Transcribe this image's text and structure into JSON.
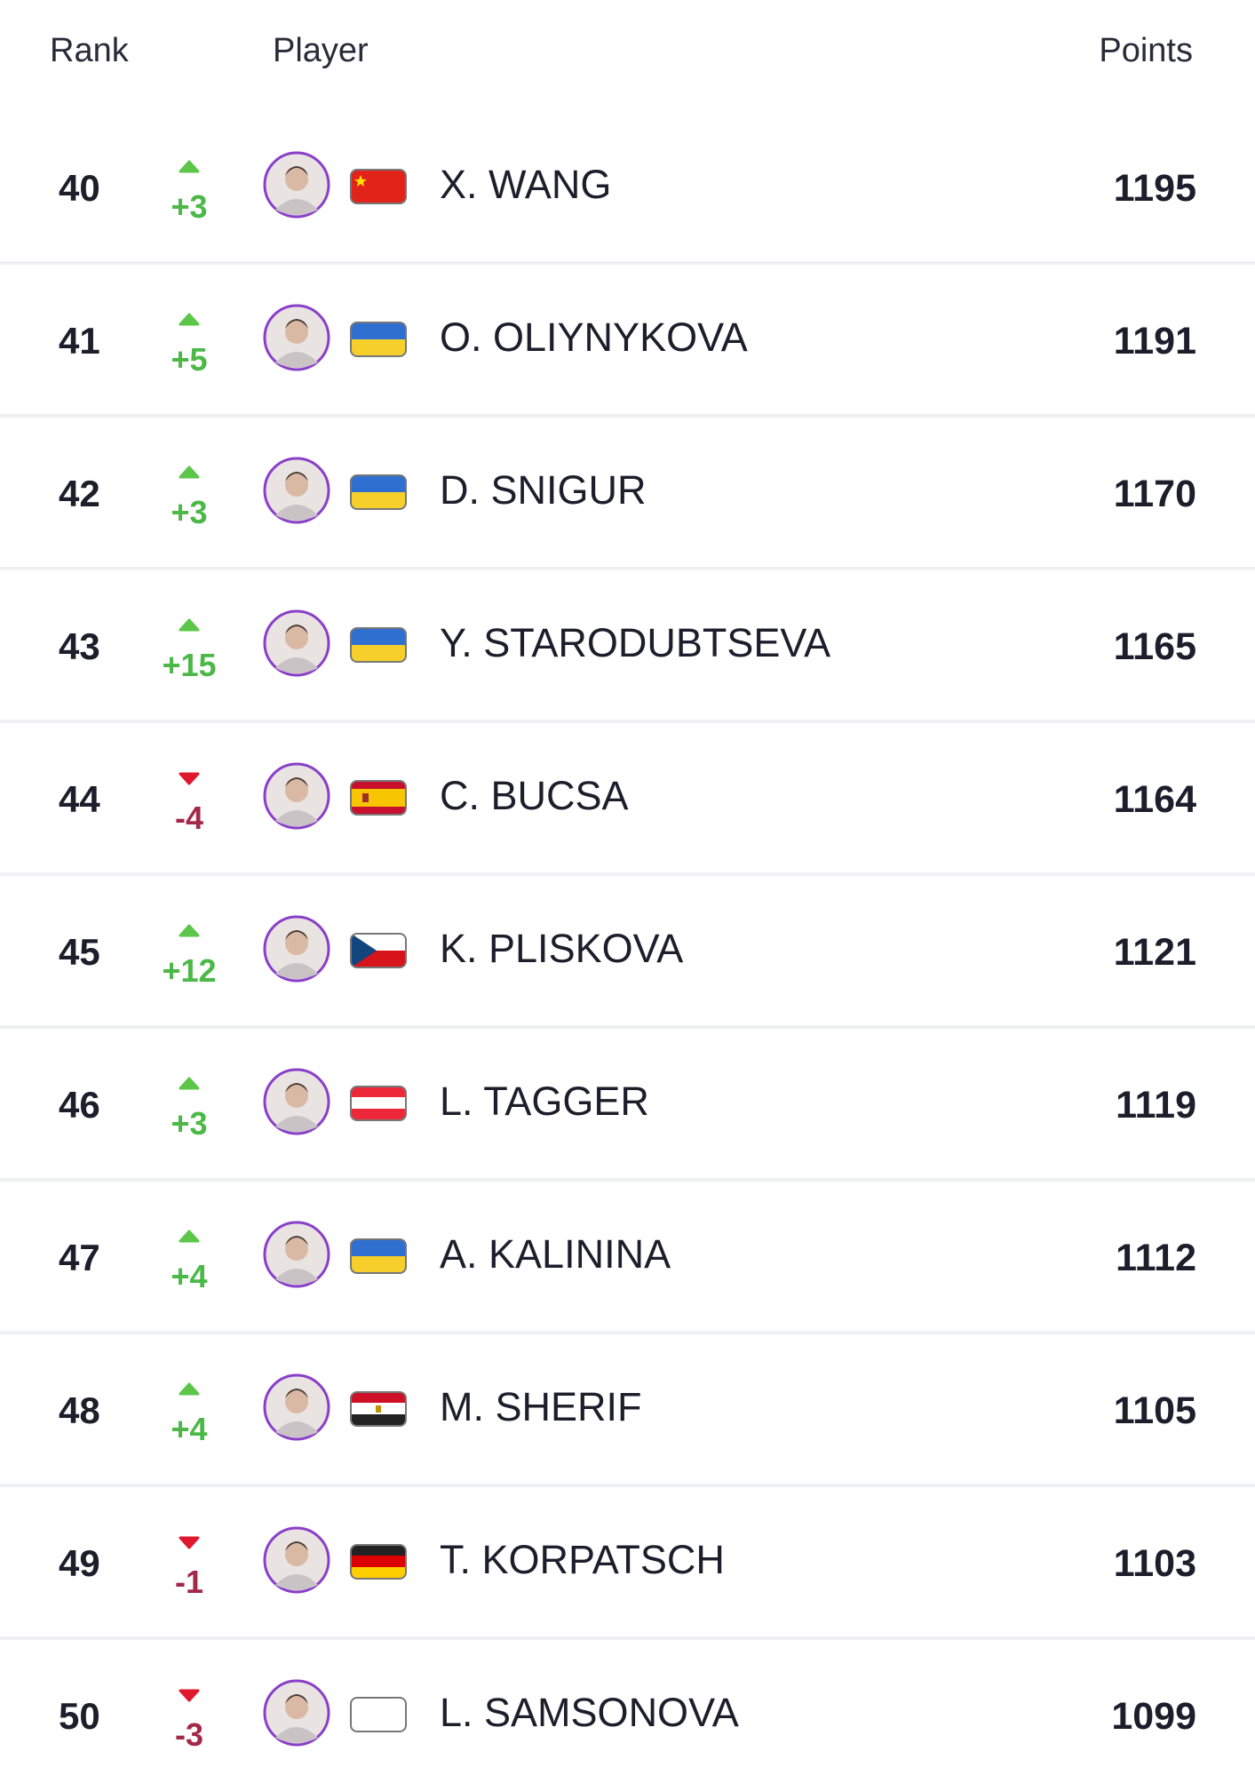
{
  "header": {
    "rank": "Rank",
    "player": "Player",
    "points": "Points"
  },
  "rows": [
    {
      "rank": 40,
      "change": "+3",
      "name": "X. WANG",
      "points": 1195
    },
    {
      "rank": 41,
      "change": "+5",
      "name": "O. OLIYNYKOVA",
      "points": 1191
    },
    {
      "rank": 42,
      "change": "+3",
      "name": "D. SNIGUR",
      "points": 1170
    },
    {
      "rank": 43,
      "change": "+15",
      "name": "Y. STARODUBTSEVA",
      "points": 1165
    },
    {
      "rank": 44,
      "change": "-4",
      "name": "C. BUCSA",
      "points": 1164
    },
    {
      "rank": 45,
      "change": "+12",
      "name": "K. PLISKOVA",
      "points": 1121
    },
    {
      "rank": 46,
      "change": "+3",
      "name": "L. TAGGER",
      "points": 1119
    },
    {
      "rank": 47,
      "change": "+4",
      "name": "A. KALININA",
      "points": 1112
    },
    {
      "rank": 48,
      "change": "+4",
      "name": "M. SHERIF",
      "points": 1105
    },
    {
      "rank": 49,
      "change": "-1",
      "name": "T. KORPATSCH",
      "points": 1103
    },
    {
      "rank": 50,
      "change": "-3",
      "name": "L. SAMSONOVA",
      "points": 1099
    }
  ]
}
